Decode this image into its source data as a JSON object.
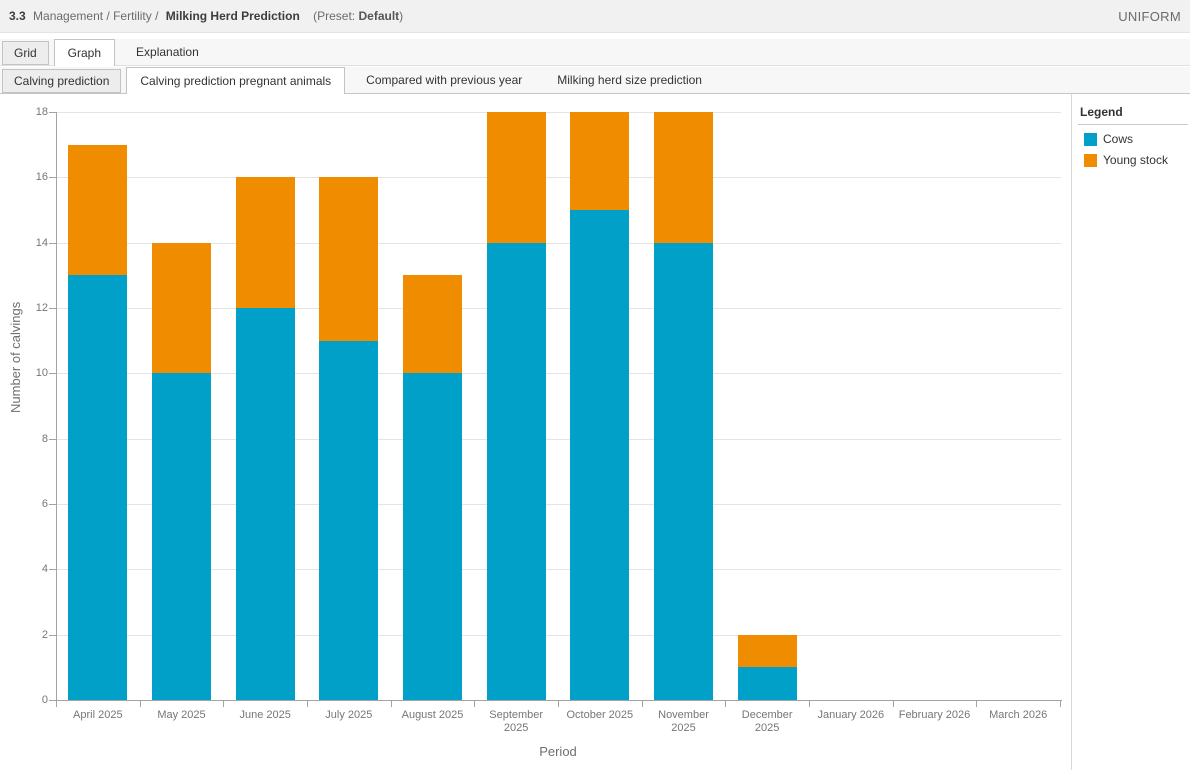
{
  "header": {
    "number": "3.3",
    "path": "Management / Fertility /",
    "title": "Milking Herd Prediction",
    "preset_prefix": "(Preset:",
    "preset_value": "Default",
    "preset_suffix": ")",
    "brand": "UNIFORM"
  },
  "tabs": {
    "primary": [
      {
        "label": "Grid",
        "state": "boxed"
      },
      {
        "label": "Graph",
        "state": "active"
      },
      {
        "label": "Explanation",
        "state": "flat"
      }
    ],
    "secondary": [
      {
        "label": "Calving prediction",
        "state": "boxed"
      },
      {
        "label": "Calving prediction pregnant animals",
        "state": "active"
      },
      {
        "label": "Compared with previous year",
        "state": "flat"
      },
      {
        "label": "Milking herd size prediction",
        "state": "flat"
      }
    ]
  },
  "legend": {
    "title": "Legend",
    "items": [
      {
        "label": "Cows",
        "color": "#00A0C8"
      },
      {
        "label": "Young stock",
        "color": "#F08C00"
      }
    ]
  },
  "chart_data": {
    "type": "bar",
    "stacked": true,
    "title": "",
    "xlabel": "Period",
    "ylabel": "Number of calvings",
    "ylim": [
      0,
      18
    ],
    "ytick_step": 2,
    "grid": true,
    "legend_position": "right",
    "categories": [
      "April 2025",
      "May 2025",
      "June 2025",
      "July 2025",
      "August 2025",
      "September\n2025",
      "October 2025",
      "November\n2025",
      "December\n2025",
      "January 2026",
      "February 2026",
      "March 2026"
    ],
    "series": [
      {
        "name": "Cows",
        "color": "#00A0C8",
        "values": [
          13,
          10,
          12,
          11,
          10,
          14,
          15,
          14,
          1,
          0,
          0,
          0
        ]
      },
      {
        "name": "Young stock",
        "color": "#F08C00",
        "values": [
          4,
          4,
          4,
          5,
          3,
          4,
          3,
          4,
          1,
          0,
          0,
          0
        ]
      }
    ],
    "totals": [
      17,
      14,
      16,
      16,
      13,
      18,
      18,
      18,
      2,
      0,
      0,
      0
    ]
  }
}
